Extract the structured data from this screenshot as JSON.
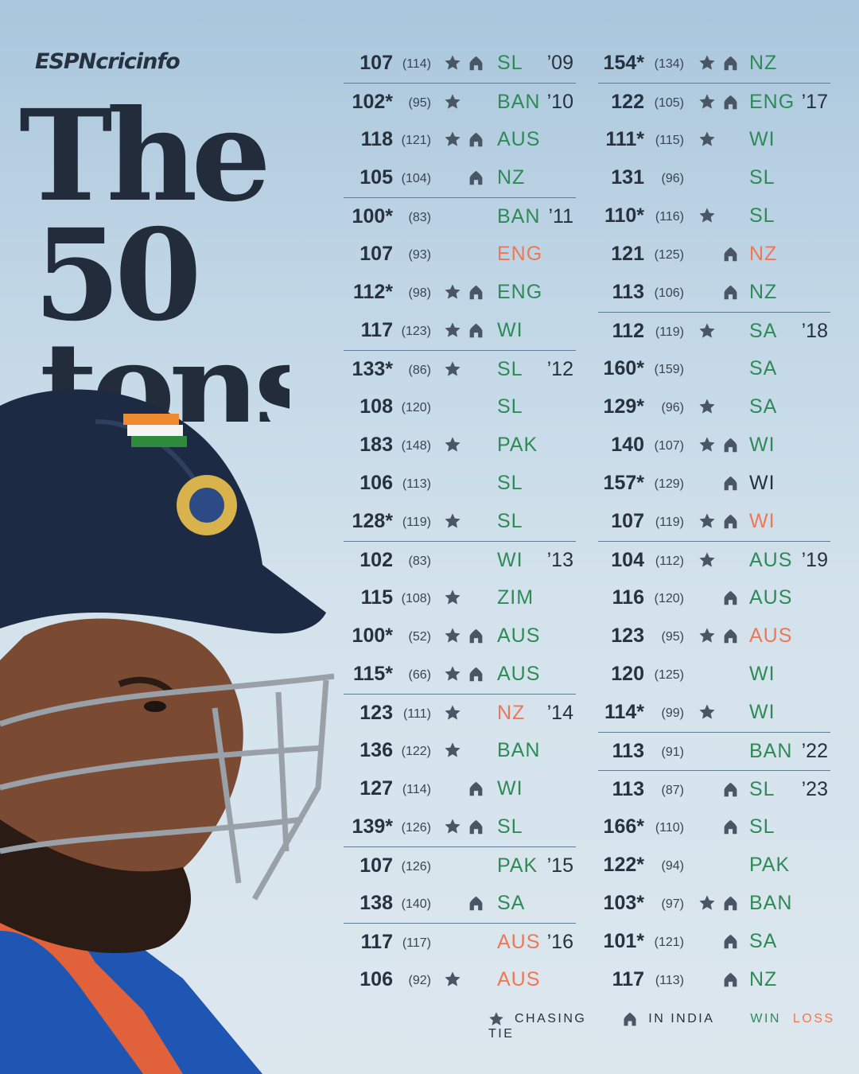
{
  "brand": "ESPNcricinfo",
  "headline": {
    "line1": "The",
    "line2": "50",
    "line3": "tons"
  },
  "columns": [
    [
      {
        "runs": "107",
        "balls": "(114)",
        "chasing": true,
        "india": true,
        "opp": "SL",
        "result": "win",
        "year": "’09",
        "sep": false
      },
      {
        "runs": "102*",
        "balls": "(95)",
        "chasing": true,
        "india": false,
        "opp": "BAN",
        "result": "win",
        "year": "’10",
        "sep": true
      },
      {
        "runs": "118",
        "balls": "(121)",
        "chasing": true,
        "india": true,
        "opp": "AUS",
        "result": "win",
        "year": "",
        "sep": false
      },
      {
        "runs": "105",
        "balls": "(104)",
        "chasing": false,
        "india": true,
        "opp": "NZ",
        "result": "win",
        "year": "",
        "sep": false
      },
      {
        "runs": "100*",
        "balls": "(83)",
        "chasing": false,
        "india": false,
        "opp": "BAN",
        "result": "win",
        "year": "’11",
        "sep": true
      },
      {
        "runs": "107",
        "balls": "(93)",
        "chasing": false,
        "india": false,
        "opp": "ENG",
        "result": "loss",
        "year": "",
        "sep": false
      },
      {
        "runs": "112*",
        "balls": "(98)",
        "chasing": true,
        "india": true,
        "opp": "ENG",
        "result": "win",
        "year": "",
        "sep": false
      },
      {
        "runs": "117",
        "balls": "(123)",
        "chasing": true,
        "india": true,
        "opp": "WI",
        "result": "win",
        "year": "",
        "sep": false
      },
      {
        "runs": "133*",
        "balls": "(86)",
        "chasing": true,
        "india": false,
        "opp": "SL",
        "result": "win",
        "year": "’12",
        "sep": true
      },
      {
        "runs": "108",
        "balls": "(120)",
        "chasing": false,
        "india": false,
        "opp": "SL",
        "result": "win",
        "year": "",
        "sep": false
      },
      {
        "runs": "183",
        "balls": "(148)",
        "chasing": true,
        "india": false,
        "opp": "PAK",
        "result": "win",
        "year": "",
        "sep": false
      },
      {
        "runs": "106",
        "balls": "(113)",
        "chasing": false,
        "india": false,
        "opp": "SL",
        "result": "win",
        "year": "",
        "sep": false
      },
      {
        "runs": "128*",
        "balls": "(119)",
        "chasing": true,
        "india": false,
        "opp": "SL",
        "result": "win",
        "year": "",
        "sep": false
      },
      {
        "runs": "102",
        "balls": "(83)",
        "chasing": false,
        "india": false,
        "opp": "WI",
        "result": "win",
        "year": "’13",
        "sep": true
      },
      {
        "runs": "115",
        "balls": "(108)",
        "chasing": true,
        "india": false,
        "opp": "ZIM",
        "result": "win",
        "year": "",
        "sep": false
      },
      {
        "runs": "100*",
        "balls": "(52)",
        "chasing": true,
        "india": true,
        "opp": "AUS",
        "result": "win",
        "year": "",
        "sep": false
      },
      {
        "runs": "115*",
        "balls": "(66)",
        "chasing": true,
        "india": true,
        "opp": "AUS",
        "result": "win",
        "year": "",
        "sep": false
      },
      {
        "runs": "123",
        "balls": "(111)",
        "chasing": true,
        "india": false,
        "opp": "NZ",
        "result": "loss",
        "year": "’14",
        "sep": true
      },
      {
        "runs": "136",
        "balls": "(122)",
        "chasing": true,
        "india": false,
        "opp": "BAN",
        "result": "win",
        "year": "",
        "sep": false
      },
      {
        "runs": "127",
        "balls": "(114)",
        "chasing": false,
        "india": true,
        "opp": "WI",
        "result": "win",
        "year": "",
        "sep": false
      },
      {
        "runs": "139*",
        "balls": "(126)",
        "chasing": true,
        "india": true,
        "opp": "SL",
        "result": "win",
        "year": "",
        "sep": false
      },
      {
        "runs": "107",
        "balls": "(126)",
        "chasing": false,
        "india": false,
        "opp": "PAK",
        "result": "win",
        "year": "’15",
        "sep": true
      },
      {
        "runs": "138",
        "balls": "(140)",
        "chasing": false,
        "india": true,
        "opp": "SA",
        "result": "win",
        "year": "",
        "sep": false
      },
      {
        "runs": "117",
        "balls": "(117)",
        "chasing": false,
        "india": false,
        "opp": "AUS",
        "result": "loss",
        "year": "’16",
        "sep": true
      },
      {
        "runs": "106",
        "balls": "(92)",
        "chasing": true,
        "india": false,
        "opp": "AUS",
        "result": "loss",
        "year": "",
        "sep": false
      }
    ],
    [
      {
        "runs": "154*",
        "balls": "(134)",
        "chasing": true,
        "india": true,
        "opp": "NZ",
        "result": "win",
        "year": "",
        "sep": false
      },
      {
        "runs": "122",
        "balls": "(105)",
        "chasing": true,
        "india": true,
        "opp": "ENG",
        "result": "win",
        "year": "’17",
        "sep": true
      },
      {
        "runs": "111*",
        "balls": "(115)",
        "chasing": true,
        "india": false,
        "opp": "WI",
        "result": "win",
        "year": "",
        "sep": false
      },
      {
        "runs": "131",
        "balls": "(96)",
        "chasing": false,
        "india": false,
        "opp": "SL",
        "result": "win",
        "year": "",
        "sep": false
      },
      {
        "runs": "110*",
        "balls": "(116)",
        "chasing": true,
        "india": false,
        "opp": "SL",
        "result": "win",
        "year": "",
        "sep": false
      },
      {
        "runs": "121",
        "balls": "(125)",
        "chasing": false,
        "india": true,
        "opp": "NZ",
        "result": "loss",
        "year": "",
        "sep": false
      },
      {
        "runs": "113",
        "balls": "(106)",
        "chasing": false,
        "india": true,
        "opp": "NZ",
        "result": "win",
        "year": "",
        "sep": false
      },
      {
        "runs": "112",
        "balls": "(119)",
        "chasing": true,
        "india": false,
        "opp": "SA",
        "result": "win",
        "year": "’18",
        "sep": true
      },
      {
        "runs": "160*",
        "balls": "(159)",
        "chasing": false,
        "india": false,
        "opp": "SA",
        "result": "win",
        "year": "",
        "sep": false
      },
      {
        "runs": "129*",
        "balls": "(96)",
        "chasing": true,
        "india": false,
        "opp": "SA",
        "result": "win",
        "year": "",
        "sep": false
      },
      {
        "runs": "140",
        "balls": "(107)",
        "chasing": true,
        "india": true,
        "opp": "WI",
        "result": "win",
        "year": "",
        "sep": false
      },
      {
        "runs": "157*",
        "balls": "(129)",
        "chasing": false,
        "india": true,
        "opp": "WI",
        "result": "tie",
        "year": "",
        "sep": false
      },
      {
        "runs": "107",
        "balls": "(119)",
        "chasing": true,
        "india": true,
        "opp": "WI",
        "result": "loss",
        "year": "",
        "sep": false
      },
      {
        "runs": "104",
        "balls": "(112)",
        "chasing": true,
        "india": false,
        "opp": "AUS",
        "result": "win",
        "year": "’19",
        "sep": true
      },
      {
        "runs": "116",
        "balls": "(120)",
        "chasing": false,
        "india": true,
        "opp": "AUS",
        "result": "win",
        "year": "",
        "sep": false
      },
      {
        "runs": "123",
        "balls": "(95)",
        "chasing": true,
        "india": true,
        "opp": "AUS",
        "result": "loss",
        "year": "",
        "sep": false
      },
      {
        "runs": "120",
        "balls": "(125)",
        "chasing": false,
        "india": false,
        "opp": "WI",
        "result": "win",
        "year": "",
        "sep": false
      },
      {
        "runs": "114*",
        "balls": "(99)",
        "chasing": true,
        "india": false,
        "opp": "WI",
        "result": "win",
        "year": "",
        "sep": false
      },
      {
        "runs": "113",
        "balls": "(91)",
        "chasing": false,
        "india": false,
        "opp": "BAN",
        "result": "win",
        "year": "’22",
        "sep": true
      },
      {
        "runs": "113",
        "balls": "(87)",
        "chasing": false,
        "india": true,
        "opp": "SL",
        "result": "win",
        "year": "’23",
        "sep": true
      },
      {
        "runs": "166*",
        "balls": "(110)",
        "chasing": false,
        "india": true,
        "opp": "SL",
        "result": "win",
        "year": "",
        "sep": false
      },
      {
        "runs": "122*",
        "balls": "(94)",
        "chasing": false,
        "india": false,
        "opp": "PAK",
        "result": "win",
        "year": "",
        "sep": false
      },
      {
        "runs": "103*",
        "balls": "(97)",
        "chasing": true,
        "india": true,
        "opp": "BAN",
        "result": "win",
        "year": "",
        "sep": false
      },
      {
        "runs": "101*",
        "balls": "(121)",
        "chasing": false,
        "india": true,
        "opp": "SA",
        "result": "win",
        "year": "",
        "sep": false
      },
      {
        "runs": "117",
        "balls": "(113)",
        "chasing": false,
        "india": true,
        "opp": "NZ",
        "result": "win",
        "year": "",
        "sep": false
      }
    ]
  ],
  "legend": {
    "chasing": "CHASING",
    "india": "IN INDIA",
    "win": "WIN",
    "loss": "LOSS",
    "tie": "TIE"
  },
  "colors": {
    "win": "#2e8b57",
    "loss": "#f07755",
    "tie": "#27313f",
    "text": "#27313f"
  },
  "icons": {
    "chasing": "star-icon",
    "india": "house-icon"
  }
}
